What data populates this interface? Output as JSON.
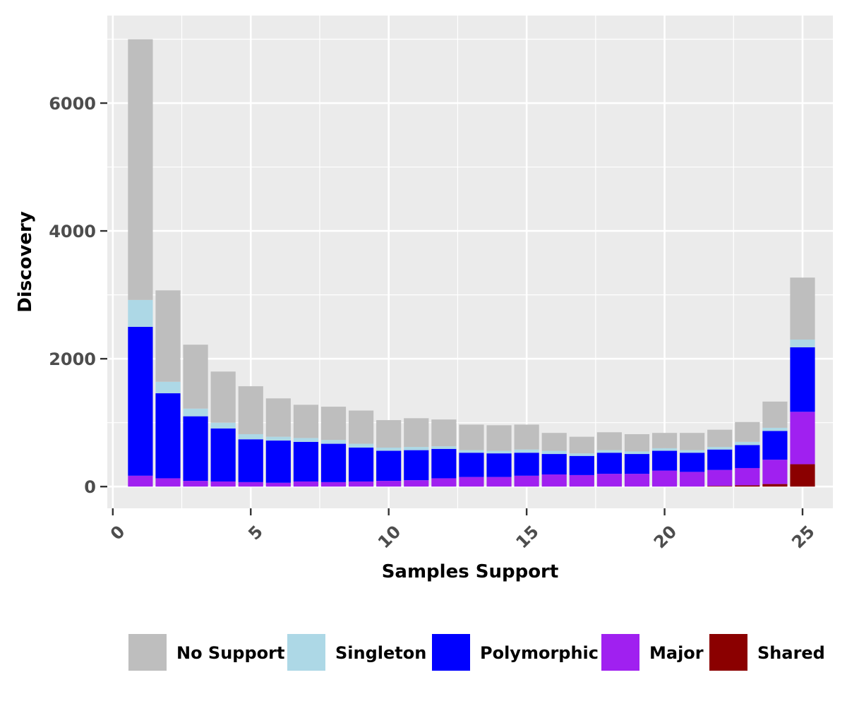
{
  "chart_data": {
    "type": "bar",
    "stacked": true,
    "title": "",
    "xlabel": "Samples Support",
    "ylabel": "Discovery",
    "x": [
      1,
      2,
      3,
      4,
      5,
      6,
      7,
      8,
      9,
      10,
      11,
      12,
      13,
      14,
      15,
      16,
      17,
      18,
      19,
      20,
      21,
      22,
      23,
      24,
      25
    ],
    "xlim": [
      -0.2,
      26.1
    ],
    "ylim": [
      -340,
      7370
    ],
    "x_ticks": [
      0,
      5,
      10,
      15,
      20,
      25
    ],
    "x_tick_labels": [
      "0",
      "5",
      "10",
      "15",
      "20",
      "25"
    ],
    "y_ticks": [
      0,
      2000,
      4000,
      6000
    ],
    "y_tick_labels": [
      "0",
      "2000",
      "4000",
      "6000"
    ],
    "grid": true,
    "legend_position": "bottom",
    "series": [
      {
        "name": "Shared",
        "color": "#8b0000",
        "values": [
          0,
          0,
          0,
          0,
          0,
          0,
          0,
          0,
          0,
          0,
          0,
          0,
          0,
          0,
          0,
          0,
          0,
          0,
          0,
          0,
          0,
          10,
          20,
          40,
          350
        ]
      },
      {
        "name": "Major",
        "color": "#a020f0",
        "values": [
          170,
          130,
          90,
          80,
          70,
          60,
          80,
          70,
          80,
          90,
          100,
          130,
          150,
          150,
          170,
          190,
          180,
          200,
          200,
          250,
          230,
          250,
          270,
          380,
          820
        ]
      },
      {
        "name": "Polymorphic",
        "color": "#0000ff",
        "values": [
          2330,
          1330,
          1010,
          830,
          670,
          660,
          620,
          600,
          530,
          470,
          470,
          460,
          380,
          370,
          360,
          320,
          300,
          330,
          310,
          310,
          300,
          320,
          360,
          450,
          1010
        ]
      },
      {
        "name": "Singleton",
        "color": "#add8e6",
        "values": [
          420,
          180,
          120,
          90,
          80,
          60,
          60,
          60,
          60,
          50,
          50,
          40,
          40,
          40,
          50,
          50,
          40,
          40,
          40,
          40,
          40,
          40,
          50,
          50,
          120
        ]
      },
      {
        "name": "No Support",
        "color": "#bebebe",
        "values": [
          4080,
          1430,
          1000,
          800,
          750,
          600,
          520,
          520,
          520,
          430,
          450,
          420,
          400,
          400,
          390,
          280,
          260,
          280,
          270,
          240,
          270,
          270,
          310,
          410,
          970
        ]
      }
    ],
    "legend_order": [
      "No Support",
      "Singleton",
      "Polymorphic",
      "Major",
      "Shared"
    ]
  }
}
